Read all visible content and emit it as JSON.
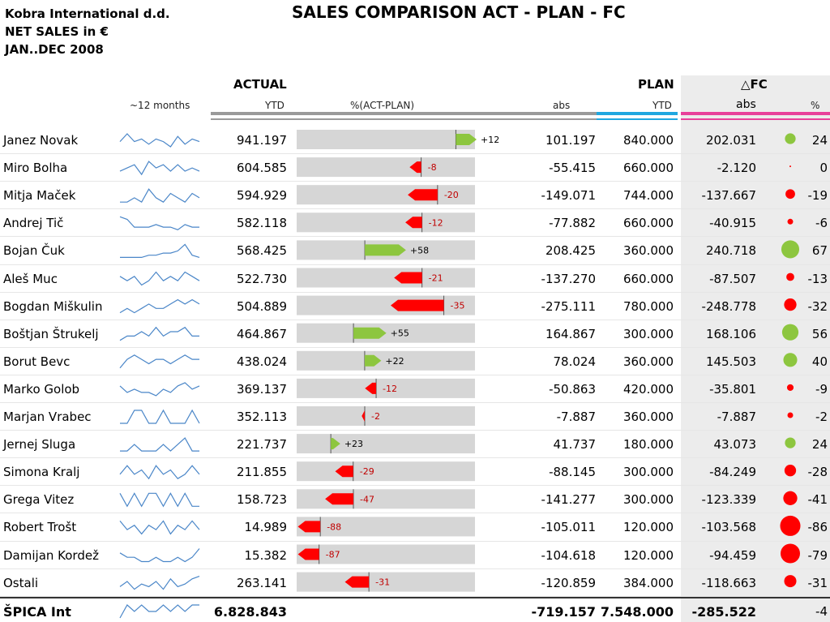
{
  "header": {
    "company": "Kobra International d.d.",
    "measure": "NET SALES in €",
    "period": "JAN..DEC 2008",
    "title": "SALES COMPARISON ACT - PLAN - FC"
  },
  "columns": {
    "spark": "~12 months",
    "actual": "ACTUAL",
    "actual_sub": "YTD",
    "pct": "%(ACT-PLAN)",
    "abs": "abs",
    "plan": "PLAN",
    "plan_sub": "YTD",
    "fc": "△FC",
    "fc_abs": "abs",
    "fc_pct": "%"
  },
  "colors": {
    "positive": "#8dc63f",
    "negative": "#ff0000",
    "bar": "#d6d6d6",
    "spark": "#4a86c8",
    "plan": "#1fa7e0",
    "fc": "#e8409a"
  },
  "chart_data": {
    "type": "table",
    "rows": [
      {
        "name": "Janez Novak",
        "actual": 941.197,
        "actual_txt": "941.197",
        "pct": 12,
        "pct_txt": "+12",
        "abs_txt": "101.197",
        "plan_txt": "840.000",
        "fc_abs_txt": "202.031",
        "fc_pct": 24,
        "fc_pct_txt": "24",
        "spark": [
          5,
          8,
          5,
          6,
          4,
          6,
          5,
          3,
          7,
          4,
          6,
          5
        ]
      },
      {
        "name": "Miro Bolha",
        "actual": 604.585,
        "actual_txt": "604.585",
        "pct": -8,
        "pct_txt": "-8",
        "abs_txt": "-55.415",
        "plan_txt": "660.000",
        "fc_abs_txt": "-2.120",
        "fc_pct": 0,
        "fc_pct_txt": "0",
        "spark": [
          4,
          5,
          6,
          3,
          7,
          5,
          6,
          4,
          6,
          4,
          5,
          4
        ]
      },
      {
        "name": "Mitja Maček",
        "actual": 594.929,
        "actual_txt": "594.929",
        "pct": -20,
        "pct_txt": "-20",
        "abs_txt": "-149.071",
        "plan_txt": "744.000",
        "fc_abs_txt": "-137.667",
        "fc_pct": -19,
        "fc_pct_txt": "-19",
        "spark": [
          4,
          4,
          5,
          4,
          7,
          5,
          4,
          6,
          5,
          4,
          6,
          5
        ]
      },
      {
        "name": "Andrej Tič",
        "actual": 582.118,
        "actual_txt": "582.118",
        "pct": -12,
        "pct_txt": "-12",
        "abs_txt": "-77.882",
        "plan_txt": "660.000",
        "fc_abs_txt": "-40.915",
        "fc_pct": -6,
        "fc_pct_txt": "-6",
        "spark": [
          8,
          7,
          4,
          4,
          4,
          5,
          4,
          4,
          3,
          5,
          4,
          4
        ]
      },
      {
        "name": "Bojan Čuk",
        "actual": 568.425,
        "actual_txt": "568.425",
        "pct": 58,
        "pct_txt": "+58",
        "abs_txt": "208.425",
        "plan_txt": "360.000",
        "fc_abs_txt": "240.718",
        "fc_pct": 67,
        "fc_pct_txt": "67",
        "spark": [
          3,
          3,
          3,
          3,
          4,
          4,
          5,
          5,
          6,
          9,
          4,
          3
        ]
      },
      {
        "name": "Aleš Muc",
        "actual": 522.73,
        "actual_txt": "522.730",
        "pct": -21,
        "pct_txt": "-21",
        "abs_txt": "-137.270",
        "plan_txt": "660.000",
        "fc_abs_txt": "-87.507",
        "fc_pct": -13,
        "fc_pct_txt": "-13",
        "spark": [
          5,
          4,
          5,
          3,
          4,
          6,
          4,
          5,
          4,
          6,
          5,
          4
        ]
      },
      {
        "name": "Bogdan Miškulin",
        "actual": 504.889,
        "actual_txt": "504.889",
        "pct": -35,
        "pct_txt": "-35",
        "abs_txt": "-275.111",
        "plan_txt": "780.000",
        "fc_abs_txt": "-248.778",
        "fc_pct": -32,
        "fc_pct_txt": "-32",
        "spark": [
          3,
          4,
          3,
          4,
          5,
          4,
          4,
          5,
          6,
          5,
          6,
          5
        ]
      },
      {
        "name": "Boštjan Štrukelj",
        "actual": 464.867,
        "actual_txt": "464.867",
        "pct": 55,
        "pct_txt": "+55",
        "abs_txt": "164.867",
        "plan_txt": "300.000",
        "fc_abs_txt": "168.106",
        "fc_pct": 56,
        "fc_pct_txt": "56",
        "spark": [
          3,
          4,
          4,
          5,
          4,
          6,
          4,
          5,
          5,
          6,
          4,
          4
        ]
      },
      {
        "name": "Borut Bevc",
        "actual": 438.024,
        "actual_txt": "438.024",
        "pct": 22,
        "pct_txt": "+22",
        "abs_txt": "78.024",
        "plan_txt": "360.000",
        "fc_abs_txt": "145.503",
        "fc_pct": 40,
        "fc_pct_txt": "40",
        "spark": [
          3,
          5,
          6,
          5,
          4,
          5,
          5,
          4,
          5,
          6,
          5,
          5
        ]
      },
      {
        "name": "Marko Golob",
        "actual": 369.137,
        "actual_txt": "369.137",
        "pct": -12,
        "pct_txt": "-12",
        "abs_txt": "-50.863",
        "plan_txt": "420.000",
        "fc_abs_txt": "-35.801",
        "fc_pct": -9,
        "fc_pct_txt": "-9",
        "spark": [
          5,
          3,
          4,
          3,
          3,
          2,
          4,
          3,
          5,
          6,
          4,
          5
        ]
      },
      {
        "name": "Marjan Vrabec",
        "actual": 352.113,
        "actual_txt": "352.113",
        "pct": -2,
        "pct_txt": "-2",
        "abs_txt": "-7.887",
        "plan_txt": "360.000",
        "fc_abs_txt": "-7.887",
        "fc_pct": -2,
        "fc_pct_txt": "-2",
        "spark": [
          4,
          4,
          5,
          5,
          4,
          4,
          5,
          4,
          4,
          4,
          5,
          4
        ]
      },
      {
        "name": "Jernej Sluga",
        "actual": 221.737,
        "actual_txt": "221.737",
        "pct": 23,
        "pct_txt": "+23",
        "abs_txt": "41.737",
        "plan_txt": "180.000",
        "fc_abs_txt": "43.073",
        "fc_pct": 24,
        "fc_pct_txt": "24",
        "spark": [
          3,
          3,
          4,
          3,
          3,
          3,
          4,
          3,
          4,
          5,
          3,
          3
        ]
      },
      {
        "name": "Simona Kralj",
        "actual": 211.855,
        "actual_txt": "211.855",
        "pct": -29,
        "pct_txt": "-29",
        "abs_txt": "-88.145",
        "plan_txt": "300.000",
        "fc_abs_txt": "-84.249",
        "fc_pct": -28,
        "fc_pct_txt": "-28",
        "spark": [
          4,
          6,
          4,
          5,
          3,
          6,
          4,
          5,
          3,
          4,
          6,
          4
        ]
      },
      {
        "name": "Grega Vitez",
        "actual": 158.723,
        "actual_txt": "158.723",
        "pct": -47,
        "pct_txt": "-47",
        "abs_txt": "-141.277",
        "plan_txt": "300.000",
        "fc_abs_txt": "-123.339",
        "fc_pct": -41,
        "fc_pct_txt": "-41",
        "spark": [
          5,
          4,
          5,
          4,
          5,
          5,
          4,
          5,
          4,
          5,
          4,
          4
        ]
      },
      {
        "name": "Robert Trošt",
        "actual": 14.989,
        "actual_txt": "14.989",
        "pct": -88,
        "pct_txt": "-88",
        "abs_txt": "-105.011",
        "plan_txt": "120.000",
        "fc_abs_txt": "-103.568",
        "fc_pct": -86,
        "fc_pct_txt": "-86",
        "spark": [
          6,
          4,
          5,
          3,
          5,
          4,
          6,
          3,
          5,
          4,
          6,
          4
        ]
      },
      {
        "name": "Damijan Kordež",
        "actual": 15.382,
        "actual_txt": "15.382",
        "pct": -87,
        "pct_txt": "-87",
        "abs_txt": "-104.618",
        "plan_txt": "120.000",
        "fc_abs_txt": "-94.459",
        "fc_pct": -79,
        "fc_pct_txt": "-79",
        "spark": [
          5,
          4,
          4,
          3,
          3,
          4,
          3,
          3,
          4,
          3,
          4,
          6
        ]
      },
      {
        "name": "Ostali",
        "actual": 263.141,
        "actual_txt": "263.141",
        "pct": -31,
        "pct_txt": "-31",
        "abs_txt": "-120.859",
        "plan_txt": "384.000",
        "fc_abs_txt": "-118.663",
        "fc_pct": -31,
        "fc_pct_txt": "-31",
        "spark": [
          3,
          5,
          2,
          4,
          3,
          5,
          2,
          6,
          3,
          4,
          6,
          7
        ]
      }
    ],
    "total": {
      "name": "ŠPICA Int",
      "actual_txt": "6.828.843",
      "abs_txt": "-719.157",
      "plan_txt": "7.548.000",
      "fc_abs_txt": "-285.522",
      "fc_pct_txt": "-4",
      "spark": [
        3,
        5,
        4,
        5,
        4,
        4,
        5,
        4,
        5,
        4,
        5,
        5
      ]
    }
  }
}
